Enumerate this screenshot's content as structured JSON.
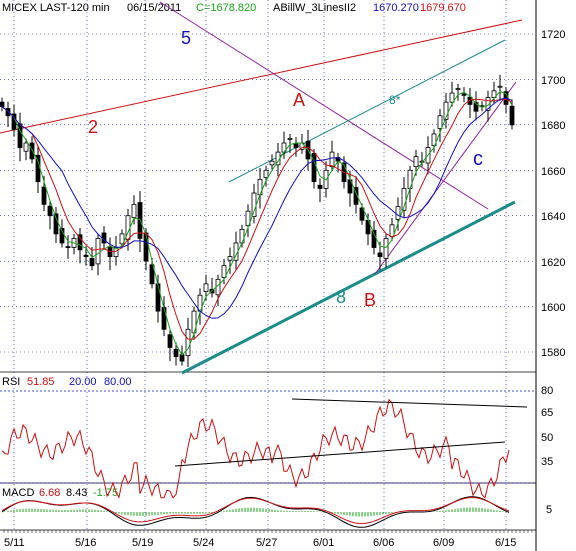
{
  "header": {
    "symbol": "MICEX LAST-120 min",
    "date": "06/15/2011",
    "close_label": "C=1678.820",
    "indicator": "ABillW_3LinesII2",
    "val_blue": "1670.270",
    "val_red": "1679.670"
  },
  "rsi_header": {
    "name": "RSI",
    "v1": "51.85",
    "v2": "20.00",
    "v3": "80.00"
  },
  "macd_header": {
    "name": "MACD",
    "v1": "6.68",
    "v2": "8.43",
    "v3": "-1.75"
  },
  "annotations": {
    "A": "A",
    "B": "B",
    "c": "c",
    "n2": "2",
    "n5": "5",
    "n8": "8",
    "n8star": "8*"
  },
  "colors": {
    "grid": "#1515c8",
    "price": "#000000",
    "ma_green": "#1aa51a",
    "ma_red": "#d01010",
    "ma_blue": "#1010c0",
    "teal": "#1a8c8c",
    "purple": "#9020a0",
    "red_line": "#d01010",
    "rsi": "#d01010"
  },
  "chart_data": [
    {
      "type": "candlestick",
      "title": "MICEX LAST-120 min",
      "x_tick_labels": [
        "5/11",
        "5/16",
        "5/19",
        "5/24",
        "5/27",
        "6/01",
        "6/06",
        "6/09",
        "6/15"
      ],
      "y_tick_labels": [
        "1580",
        "1600",
        "1620",
        "1640",
        "1660",
        "1680",
        "1700",
        "1720"
      ],
      "ylim": [
        1568,
        1730
      ],
      "close_path_approx": [
        1688,
        1684,
        1678,
        1670,
        1672,
        1665,
        1655,
        1645,
        1640,
        1632,
        1628,
        1626,
        1630,
        1625,
        1622,
        1618,
        1630,
        1628,
        1622,
        1626,
        1632,
        1640,
        1645,
        1630,
        1620,
        1610,
        1598,
        1590,
        1582,
        1578,
        1576,
        1590,
        1598,
        1605,
        1610,
        1606,
        1612,
        1618,
        1622,
        1628,
        1634,
        1642,
        1650,
        1656,
        1660,
        1664,
        1668,
        1672,
        1674,
        1670,
        1672,
        1665,
        1655,
        1652,
        1660,
        1668,
        1664,
        1655,
        1650,
        1645,
        1638,
        1632,
        1626,
        1622,
        1630,
        1636,
        1644,
        1652,
        1660,
        1666,
        1664,
        1670,
        1676,
        1684,
        1690,
        1694,
        1696,
        1693,
        1689,
        1686,
        1688,
        1692,
        1695,
        1697,
        1689,
        1680
      ]
    },
    {
      "type": "line",
      "title": "RSI",
      "y_tick_labels": [
        "35",
        "50",
        "65",
        "80"
      ],
      "ylim": [
        20,
        90
      ],
      "reference_levels": [
        20,
        80
      ],
      "last_value": 51.85
    },
    {
      "type": "line",
      "title": "MACD",
      "y_tick_labels": [
        "5"
      ],
      "values": {
        "macd": 6.68,
        "signal": 8.43,
        "hist": -1.75
      }
    }
  ]
}
